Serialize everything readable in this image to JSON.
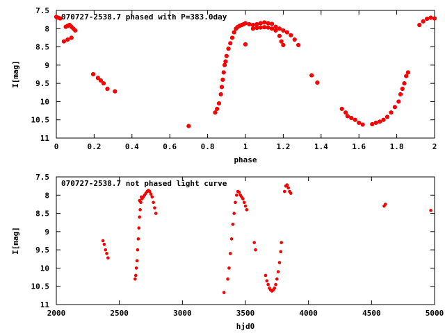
{
  "chart_data": [
    {
      "type": "scatter",
      "title": "070727-2538.7 phased with P=383.0day",
      "xlabel": "phase",
      "ylabel": "I[mag]",
      "xlim": [
        0,
        2
      ],
      "ylim": [
        7.5,
        11
      ],
      "y_inverted": true,
      "grid": false,
      "color": "#ff0000",
      "xticks": [
        "0",
        "0.2",
        "0.4",
        "0.6",
        "0.8",
        "1",
        "1.2",
        "1.4",
        "1.6",
        "1.8",
        "2"
      ],
      "yticks": [
        "7.5",
        "8",
        "8.5",
        "9",
        "9.5",
        "10",
        "10.5",
        "11"
      ],
      "points": [
        [
          0.0,
          7.68
        ],
        [
          0.01,
          7.7
        ],
        [
          0.02,
          7.72
        ],
        [
          0.04,
          8.35
        ],
        [
          0.06,
          8.3
        ],
        [
          0.08,
          8.25
        ],
        [
          0.05,
          7.95
        ],
        [
          0.06,
          7.92
        ],
        [
          0.07,
          7.9
        ],
        [
          0.08,
          7.95
        ],
        [
          0.09,
          8.0
        ],
        [
          0.1,
          8.05
        ],
        [
          0.195,
          9.25
        ],
        [
          0.22,
          9.35
        ],
        [
          0.235,
          9.42
        ],
        [
          0.25,
          9.5
        ],
        [
          0.27,
          9.65
        ],
        [
          0.31,
          9.72
        ],
        [
          0.7,
          10.67
        ],
        [
          0.84,
          10.3
        ],
        [
          0.85,
          10.2
        ],
        [
          0.86,
          10.05
        ],
        [
          0.87,
          9.8
        ],
        [
          0.875,
          9.6
        ],
        [
          0.88,
          9.4
        ],
        [
          0.885,
          9.2
        ],
        [
          0.89,
          9.0
        ],
        [
          0.895,
          8.9
        ],
        [
          0.9,
          8.75
        ],
        [
          0.91,
          8.55
        ],
        [
          0.92,
          8.4
        ],
        [
          0.93,
          8.25
        ],
        [
          0.94,
          8.1
        ],
        [
          0.95,
          8.0
        ],
        [
          0.96,
          7.95
        ],
        [
          0.97,
          7.92
        ],
        [
          0.98,
          7.9
        ],
        [
          0.99,
          7.88
        ],
        [
          1.0,
          8.43
        ],
        [
          1.0,
          7.85
        ],
        [
          1.02,
          7.88
        ],
        [
          1.04,
          7.9
        ],
        [
          1.06,
          7.88
        ],
        [
          1.08,
          7.85
        ],
        [
          1.1,
          7.83
        ],
        [
          1.12,
          7.85
        ],
        [
          1.14,
          7.87
        ],
        [
          1.04,
          8.0
        ],
        [
          1.06,
          7.98
        ],
        [
          1.08,
          7.97
        ],
        [
          1.1,
          7.96
        ],
        [
          1.12,
          7.97
        ],
        [
          1.14,
          8.0
        ],
        [
          1.16,
          8.05
        ],
        [
          1.18,
          8.2
        ],
        [
          1.19,
          8.35
        ],
        [
          1.2,
          8.45
        ],
        [
          1.16,
          7.95
        ],
        [
          1.18,
          8.0
        ],
        [
          1.2,
          8.05
        ],
        [
          1.22,
          8.1
        ],
        [
          1.24,
          8.18
        ],
        [
          1.26,
          8.3
        ],
        [
          1.28,
          8.45
        ],
        [
          1.35,
          9.28
        ],
        [
          1.38,
          9.48
        ],
        [
          1.51,
          10.2
        ],
        [
          1.53,
          10.3
        ],
        [
          1.54,
          10.4
        ],
        [
          1.56,
          10.45
        ],
        [
          1.58,
          10.5
        ],
        [
          1.6,
          10.58
        ],
        [
          1.62,
          10.63
        ],
        [
          1.67,
          10.62
        ],
        [
          1.69,
          10.58
        ],
        [
          1.71,
          10.55
        ],
        [
          1.73,
          10.5
        ],
        [
          1.75,
          10.42
        ],
        [
          1.77,
          10.3
        ],
        [
          1.79,
          10.15
        ],
        [
          1.81,
          10.0
        ],
        [
          1.82,
          9.8
        ],
        [
          1.83,
          9.65
        ],
        [
          1.84,
          9.5
        ],
        [
          1.85,
          9.3
        ],
        [
          1.86,
          9.2
        ],
        [
          1.92,
          7.9
        ],
        [
          1.94,
          7.8
        ],
        [
          1.96,
          7.73
        ],
        [
          1.98,
          7.7
        ],
        [
          2.0,
          7.72
        ]
      ]
    },
    {
      "type": "scatter",
      "title": "070727-2538.7 not phased light curve",
      "xlabel": "hjd0",
      "ylabel": "I[mag]",
      "xlim": [
        2000,
        5000
      ],
      "ylim": [
        7.5,
        11
      ],
      "y_inverted": true,
      "grid": false,
      "color": "#ff0000",
      "xticks": [
        "2000",
        "2500",
        "3000",
        "3500",
        "4000",
        "4500",
        "5000"
      ],
      "yticks": [
        "7.5",
        "8",
        "8.5",
        "9",
        "9.5",
        "10",
        "10.5",
        "11"
      ],
      "points": [
        [
          2370,
          9.25
        ],
        [
          2380,
          9.35
        ],
        [
          2390,
          9.5
        ],
        [
          2400,
          9.6
        ],
        [
          2410,
          9.72
        ],
        [
          2625,
          10.3
        ],
        [
          2630,
          10.2
        ],
        [
          2635,
          10.0
        ],
        [
          2640,
          9.8
        ],
        [
          2645,
          9.5
        ],
        [
          2650,
          9.2
        ],
        [
          2655,
          8.9
        ],
        [
          2660,
          8.6
        ],
        [
          2665,
          8.4
        ],
        [
          2670,
          8.2
        ],
        [
          2680,
          8.1
        ],
        [
          2690,
          8.05
        ],
        [
          2700,
          8.0
        ],
        [
          2710,
          7.95
        ],
        [
          2720,
          7.9
        ],
        [
          2730,
          7.87
        ],
        [
          2740,
          7.9
        ],
        [
          2750,
          7.97
        ],
        [
          2760,
          8.05
        ],
        [
          2770,
          8.2
        ],
        [
          2780,
          8.35
        ],
        [
          2790,
          8.5
        ],
        [
          2660,
          8.15
        ],
        [
          2675,
          8.05
        ],
        [
          3330,
          10.67
        ],
        [
          3360,
          10.3
        ],
        [
          3370,
          10.0
        ],
        [
          3380,
          9.6
        ],
        [
          3390,
          9.2
        ],
        [
          3400,
          8.8
        ],
        [
          3410,
          8.5
        ],
        [
          3420,
          8.2
        ],
        [
          3430,
          8.0
        ],
        [
          3440,
          7.9
        ],
        [
          3450,
          7.92
        ],
        [
          3460,
          8.0
        ],
        [
          3470,
          8.05
        ],
        [
          3480,
          8.1
        ],
        [
          3490,
          8.2
        ],
        [
          3500,
          8.3
        ],
        [
          3510,
          8.4
        ],
        [
          3570,
          9.3
        ],
        [
          3580,
          9.5
        ],
        [
          3660,
          10.2
        ],
        [
          3670,
          10.35
        ],
        [
          3680,
          10.45
        ],
        [
          3690,
          10.55
        ],
        [
          3700,
          10.6
        ],
        [
          3710,
          10.63
        ],
        [
          3720,
          10.6
        ],
        [
          3730,
          10.55
        ],
        [
          3740,
          10.45
        ],
        [
          3750,
          10.3
        ],
        [
          3760,
          10.1
        ],
        [
          3770,
          9.85
        ],
        [
          3780,
          9.55
        ],
        [
          3785,
          9.3
        ],
        [
          3810,
          7.9
        ],
        [
          3820,
          7.75
        ],
        [
          3830,
          7.72
        ],
        [
          3840,
          7.8
        ],
        [
          3850,
          7.9
        ],
        [
          3860,
          7.95
        ],
        [
          4600,
          8.3
        ],
        [
          4610,
          8.25
        ],
        [
          4970,
          8.42
        ]
      ]
    }
  ]
}
